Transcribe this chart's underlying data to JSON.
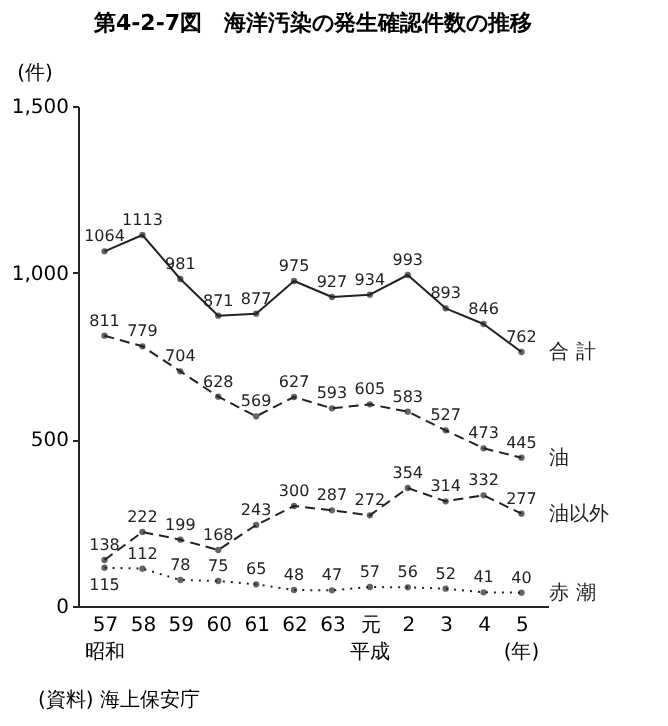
{
  "chart_data": {
    "type": "line",
    "title": "第4-2-7図　海洋汚染の発生確認件数の推移",
    "ylabel": "(件)",
    "categories": [
      "57",
      "58",
      "59",
      "60",
      "61",
      "62",
      "63",
      "元",
      "2",
      "3",
      "4",
      "5"
    ],
    "series": [
      {
        "name": "合 計",
        "color": "#222222",
        "line_style": "solid",
        "values": [
          1064,
          1113,
          981,
          871,
          877,
          975,
          927,
          934,
          993,
          893,
          846,
          762
        ]
      },
      {
        "name": "油",
        "color": "#222222",
        "line_style": "dashed",
        "values": [
          811,
          779,
          704,
          628,
          569,
          627,
          593,
          605,
          583,
          527,
          473,
          445
        ]
      },
      {
        "name": "油以外",
        "color": "#222222",
        "line_style": "dashed",
        "values": [
          138,
          222,
          199,
          168,
          243,
          300,
          287,
          272,
          354,
          314,
          332,
          277
        ]
      },
      {
        "name": "赤 潮",
        "color": "#222222",
        "line_style": "dotted",
        "values": [
          115,
          112,
          78,
          75,
          65,
          48,
          47,
          57,
          56,
          52,
          41,
          40
        ]
      }
    ],
    "ylim": [
      0,
      1500
    ],
    "yticks": [
      0,
      500,
      {
        "value": 1000,
        "label": "1,000"
      },
      {
        "value": 1500,
        "label": "1,500"
      }
    ],
    "data_labels": true,
    "marker": "circle",
    "grid": false,
    "legend": false,
    "annotations": [
      "昭和",
      "平成",
      "(年)",
      "(資料) 海上保安庁"
    ]
  }
}
